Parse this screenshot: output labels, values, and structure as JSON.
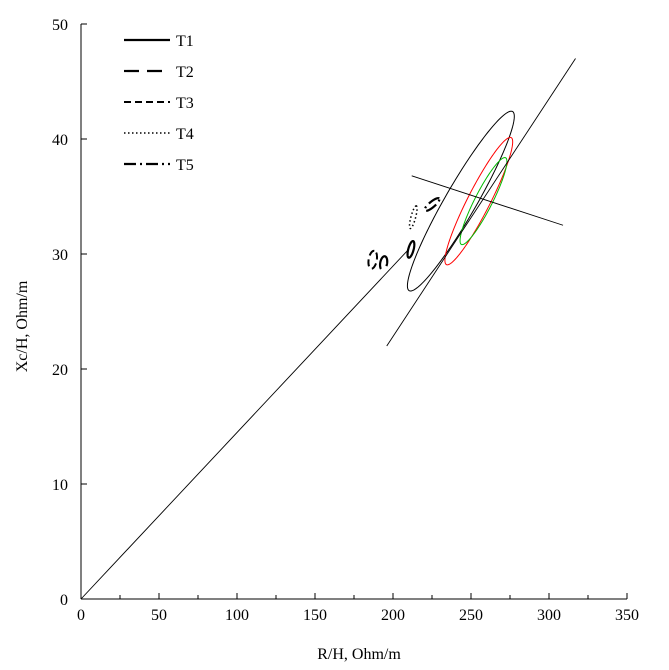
{
  "chart_data": {
    "type": "scatter",
    "xlabel": "R/H,  Ohm/m",
    "ylabel": "Xc/H,  Ohm/m",
    "xlim": [
      0,
      350
    ],
    "ylim": [
      0,
      50
    ],
    "xticks": [
      0,
      50,
      100,
      150,
      200,
      250,
      300,
      350
    ],
    "yticks": [
      0,
      10,
      20,
      30,
      40,
      50
    ],
    "x_minor_step": 25,
    "grid": false,
    "legend_position": "top-left",
    "series": [
      {
        "name": "T1",
        "dash": "solid",
        "width": 2.2,
        "ellipse": {
          "cx": 211.5,
          "cy": 30.4,
          "rx": 5.5,
          "ry": 1.7,
          "angle_deg": 75
        }
      },
      {
        "name": "T2",
        "dash": "long-dash",
        "width": 2.2,
        "ellipse": {
          "cx": 194.0,
          "cy": 29.2,
          "rx": 4.5,
          "ry": 2.2,
          "angle_deg": 80
        }
      },
      {
        "name": "T3",
        "dash": "short-dash",
        "width": 2.0,
        "ellipse": {
          "cx": 187.0,
          "cy": 29.5,
          "rx": 5.8,
          "ry": 2.6,
          "angle_deg": 80
        }
      },
      {
        "name": "T4",
        "dash": "dotted",
        "width": 1.5,
        "ellipse": {
          "cx": 213.0,
          "cy": 33.2,
          "rx": 7.5,
          "ry": 1.5,
          "angle_deg": 75
        }
      },
      {
        "name": "T5",
        "dash": "dash-dot",
        "width": 2.2,
        "ellipse": {
          "cx": 225.0,
          "cy": 34.3,
          "rx": 6.0,
          "ry": 1.8,
          "angle_deg": 40
        }
      }
    ],
    "reference_lines": [
      {
        "color": "#000000",
        "width": 0.9,
        "from": [
          0,
          0
        ],
        "to": [
          210,
          30.4
        ]
      },
      {
        "color": "#000000",
        "width": 0.9,
        "from": [
          196.0,
          22.0
        ],
        "to": [
          317.0,
          47.0
        ]
      },
      {
        "color": "#000000",
        "width": 0.9,
        "from": [
          212.0,
          36.8
        ],
        "to": [
          309.0,
          32.5
        ]
      }
    ],
    "reference_ellipses": [
      {
        "color": "#000000",
        "width": 1.0,
        "cx": 243.5,
        "cy": 34.6,
        "rx": 66.3,
        "ry": 10.0,
        "angle_deg": 60
      },
      {
        "color": "#ff0000",
        "width": 1.0,
        "cx": 255.0,
        "cy": 34.6,
        "rx": 45.7,
        "ry": 7.2,
        "angle_deg": 63
      },
      {
        "color": "#00bb00",
        "width": 1.0,
        "cx": 258.0,
        "cy": 34.6,
        "rx": 31.2,
        "ry": 5.6,
        "angle_deg": 63
      }
    ]
  }
}
